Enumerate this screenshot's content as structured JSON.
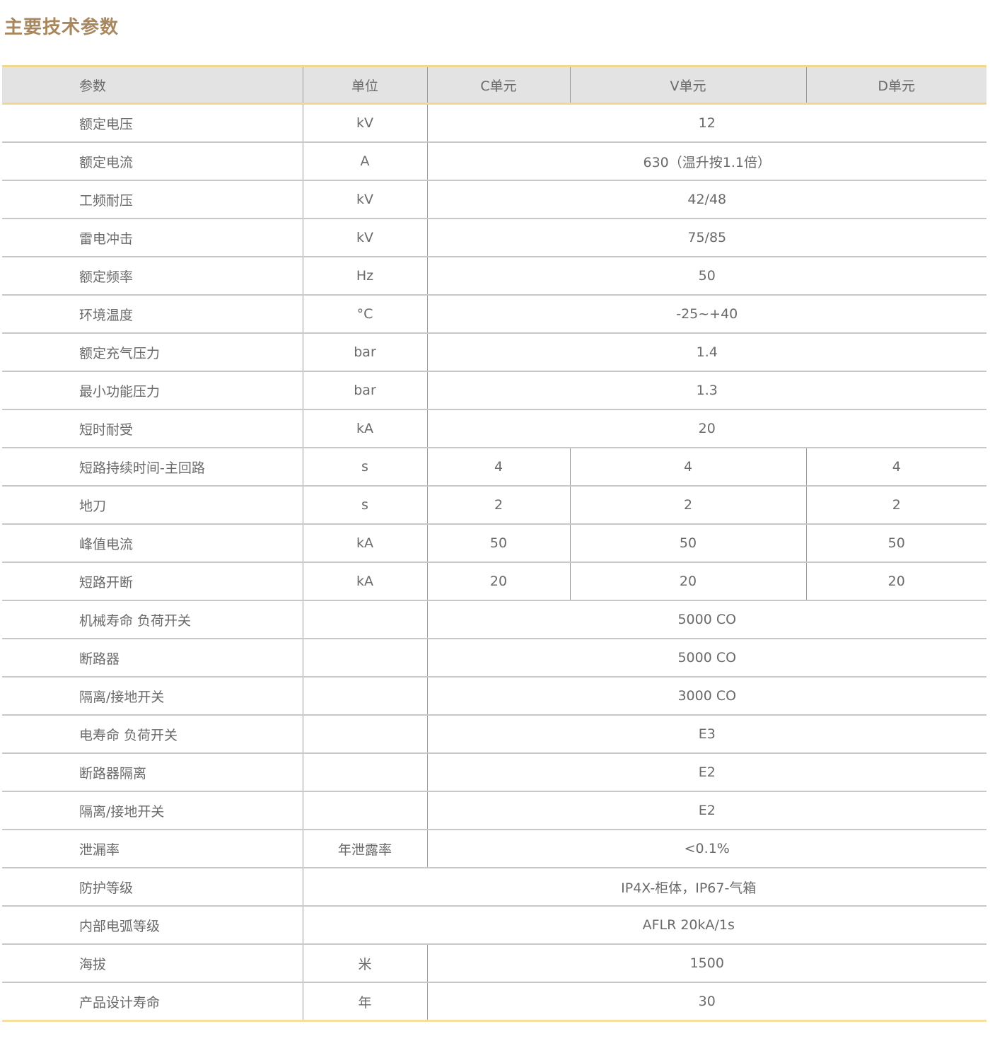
{
  "title": "主要技术参数",
  "colors": {
    "title": "#a8875e",
    "header_bg": "#e3e3e3",
    "accent_line": "#f0d890"
  },
  "headers": [
    "参数",
    "单位",
    "C单元",
    "V单元",
    "D单元"
  ],
  "rows": [
    {
      "param": "额定电压",
      "unit": "kV",
      "value": "12"
    },
    {
      "param": "额定电流",
      "unit": "A",
      "value": "630（温升按1.1倍）"
    },
    {
      "param": "工频耐压",
      "unit": "kV",
      "value": "42/48"
    },
    {
      "param": "雷电冲击",
      "unit": "kV",
      "value": "75/85"
    },
    {
      "param": "额定频率",
      "unit": "Hz",
      "value": "50"
    },
    {
      "param": "环境温度",
      "unit": "°C",
      "value": "-25~+40"
    },
    {
      "param": "额定充气压力",
      "unit": "bar",
      "value": "1.4"
    },
    {
      "param": "最小功能压力",
      "unit": "bar",
      "value": "1.3"
    },
    {
      "param": "短时耐受",
      "unit": "kA",
      "value": "20"
    },
    {
      "param": "短路持续时间-主回路",
      "unit": "s",
      "c": "4",
      "v": "4",
      "d": "4"
    },
    {
      "param": "地刀",
      "unit": "s",
      "c": "2",
      "v": "2",
      "d": "2"
    },
    {
      "param": "峰值电流",
      "unit": "kA",
      "c": "50",
      "v": "50",
      "d": "50"
    },
    {
      "param": "短路开断",
      "unit": "kA",
      "c": "20",
      "v": "20",
      "d": "20"
    },
    {
      "param": "机械寿命  负荷开关",
      "unit": "",
      "value": "5000 CO"
    },
    {
      "param": "断路器",
      "unit": "",
      "value": "5000 CO"
    },
    {
      "param": "隔离/接地开关",
      "unit": "",
      "value": "3000 CO"
    },
    {
      "param": "电寿命  负荷开关",
      "unit": "",
      "value": "E3"
    },
    {
      "param": "断路器隔离",
      "unit": "",
      "value": "E2"
    },
    {
      "param": "隔离/接地开关",
      "unit": "",
      "value": "E2"
    },
    {
      "param": "泄漏率",
      "unit": "年泄露率",
      "value": "<0.1%"
    },
    {
      "param": "防护等级",
      "wide": "IP4X-柜体，IP67-气箱"
    },
    {
      "param": "内部电弧等级",
      "wide": "AFLR 20kA/1s"
    },
    {
      "param": "海拔",
      "unit": "米",
      "value": "1500"
    },
    {
      "param": "产品设计寿命",
      "unit": "年",
      "value": "30"
    }
  ]
}
